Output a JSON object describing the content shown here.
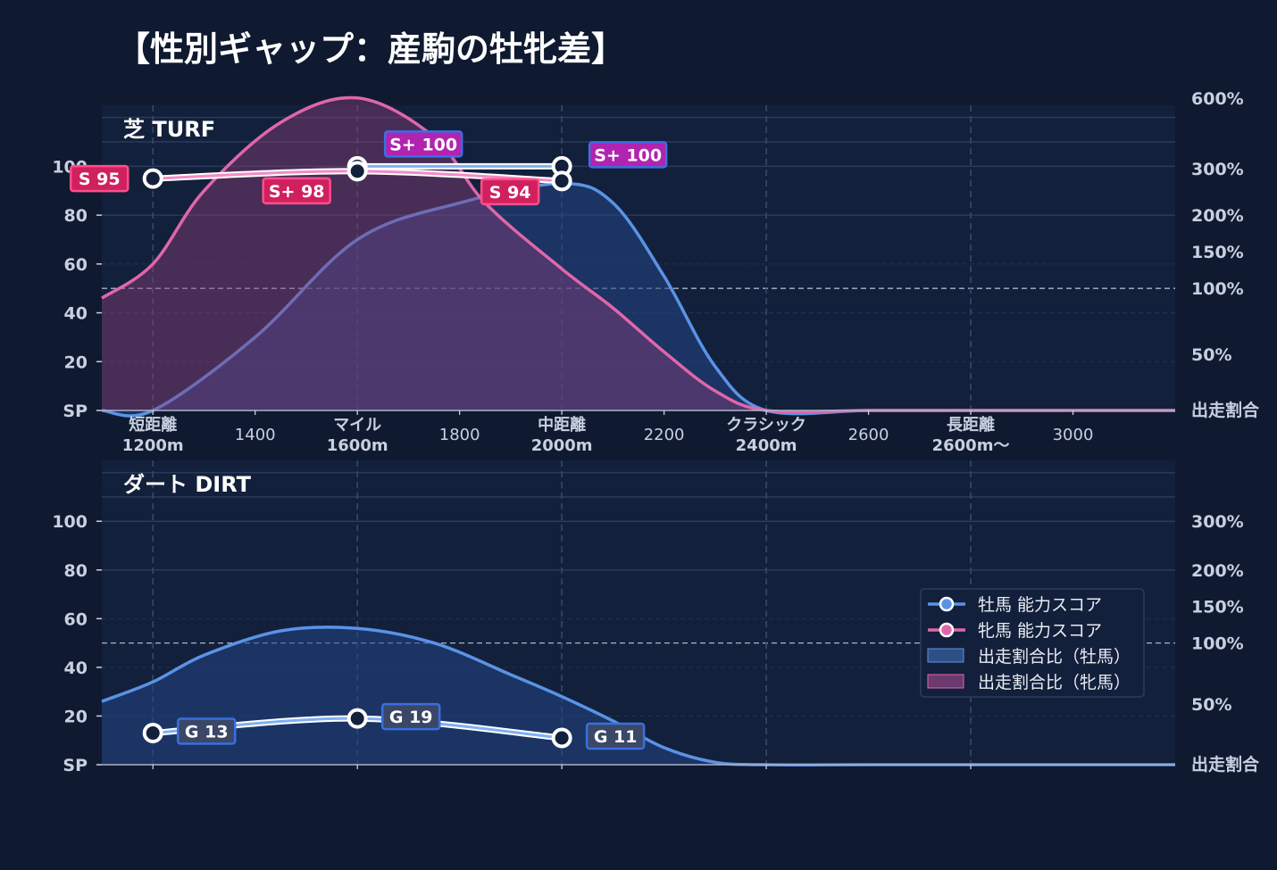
{
  "page_title": "【性別ギャップ：産駒の牡牝差】",
  "colors": {
    "background": "#0f1a30",
    "panel": "#13203b",
    "male": "#5a93e6",
    "female": "#e066aa",
    "male_badge": "#2457c9",
    "female_badge": "#d0205e"
  },
  "chart_data": [
    {
      "type": "line",
      "panel_label": "芝 TURF",
      "y_ticks": [
        "SP",
        "20",
        "40",
        "60",
        "80",
        "100"
      ],
      "y_ticks_values": [
        0,
        20,
        40,
        60,
        80,
        100
      ],
      "ylim": [
        0,
        125
      ],
      "right_ticks": [
        "出走割合",
        "50%",
        "100%",
        "150%",
        "200%",
        "300%",
        "600%"
      ],
      "right_ticks_values": [
        0,
        23,
        50,
        65,
        80,
        99,
        128
      ],
      "x_ticks": [
        {
          "x": 1200,
          "label": "短距離\n1200m",
          "bold": true
        },
        {
          "x": 1400,
          "label": "1400",
          "bold": false
        },
        {
          "x": 1600,
          "label": "マイル\n1600m",
          "bold": true
        },
        {
          "x": 1800,
          "label": "1800",
          "bold": false
        },
        {
          "x": 2000,
          "label": "中距離\n2000m",
          "bold": true
        },
        {
          "x": 2200,
          "label": "2200",
          "bold": false
        },
        {
          "x": 2400,
          "label": "クラシック\n2400m",
          "bold": true
        },
        {
          "x": 2600,
          "label": "2600",
          "bold": false
        },
        {
          "x": 2800,
          "label": "長距離\n2600m〜",
          "bold": true
        },
        {
          "x": 3000,
          "label": "3000",
          "bold": false
        }
      ],
      "xlim": [
        1100,
        3200
      ],
      "series": [
        {
          "name": "牡馬 能力スコア",
          "kind": "score",
          "color": "#5a93e6",
          "points": [
            {
              "x": 1600,
              "y": 100,
              "label": "S+ 100"
            },
            {
              "x": 2000,
              "y": 100,
              "label": "S+ 100"
            }
          ]
        },
        {
          "name": "牝馬 能力スコア",
          "kind": "score",
          "color": "#e066aa",
          "points": [
            {
              "x": 1200,
              "y": 95,
              "label": "S 95"
            },
            {
              "x": 1600,
              "y": 98,
              "label": "S+ 98"
            },
            {
              "x": 2000,
              "y": 94,
              "label": "S 94"
            }
          ]
        },
        {
          "name": "出走割合比（牡馬）",
          "kind": "area",
          "color": "#5a93e6",
          "x": [
            1100,
            1200,
            1400,
            1600,
            1800,
            2000,
            2100,
            2200,
            2300,
            2400,
            2600,
            2800,
            3000,
            3200
          ],
          "y": [
            0,
            0,
            30,
            70,
            85,
            93,
            85,
            55,
            18,
            0,
            0,
            0,
            0,
            0
          ]
        },
        {
          "name": "出走割合比（牝馬）",
          "kind": "area",
          "color": "#e066aa",
          "x": [
            1100,
            1200,
            1300,
            1450,
            1600,
            1750,
            1850,
            2000,
            2100,
            2200,
            2300,
            2400,
            2600,
            2800,
            3000,
            3200
          ],
          "y": [
            46,
            60,
            90,
            118,
            128,
            112,
            85,
            58,
            42,
            24,
            8,
            0,
            0,
            0,
            0,
            0
          ]
        }
      ]
    },
    {
      "type": "line",
      "panel_label": "ダート DIRT",
      "y_ticks": [
        "SP",
        "20",
        "40",
        "60",
        "80",
        "100"
      ],
      "y_ticks_values": [
        0,
        20,
        40,
        60,
        80,
        100
      ],
      "ylim": [
        0,
        125
      ],
      "right_ticks": [
        "出走割合",
        "50%",
        "100%",
        "150%",
        "200%",
        "300%"
      ],
      "right_ticks_values": [
        0,
        25,
        50,
        65,
        80,
        100
      ],
      "x_ticks": [
        {
          "x": 1200,
          "label": "",
          "bold": false
        },
        {
          "x": 1600,
          "label": "",
          "bold": false
        },
        {
          "x": 2000,
          "label": "",
          "bold": false
        },
        {
          "x": 2400,
          "label": "",
          "bold": false
        },
        {
          "x": 2800,
          "label": "",
          "bold": false
        }
      ],
      "xlim": [
        1100,
        3200
      ],
      "series": [
        {
          "name": "牡馬 能力スコア",
          "kind": "score",
          "color": "#5a93e6",
          "points": [
            {
              "x": 1200,
              "y": 13,
              "label": "G 13"
            },
            {
              "x": 1600,
              "y": 19,
              "label": "G 19"
            },
            {
              "x": 2000,
              "y": 11,
              "label": "G 11"
            }
          ]
        },
        {
          "name": "出走割合比（牡馬）",
          "kind": "area",
          "color": "#5a93e6",
          "x": [
            1100,
            1200,
            1300,
            1450,
            1600,
            1750,
            1900,
            2000,
            2100,
            2200,
            2300,
            2400,
            2600,
            2800,
            3000,
            3200
          ],
          "y": [
            26,
            34,
            45,
            55,
            56,
            50,
            37,
            28,
            18,
            7,
            1,
            0,
            0,
            0,
            0,
            0
          ]
        }
      ],
      "legend": {
        "placement": "right",
        "entries": [
          {
            "label": "牡馬 能力スコア",
            "kind": "line",
            "color": "#5a93e6"
          },
          {
            "label": "牝馬 能力スコア",
            "kind": "line",
            "color": "#e066aa"
          },
          {
            "label": "出走割合比（牡馬）",
            "kind": "patch",
            "color": "#5a93e6"
          },
          {
            "label": "出走割合比（牝馬）",
            "kind": "patch",
            "color": "#e066aa"
          }
        ]
      }
    }
  ]
}
